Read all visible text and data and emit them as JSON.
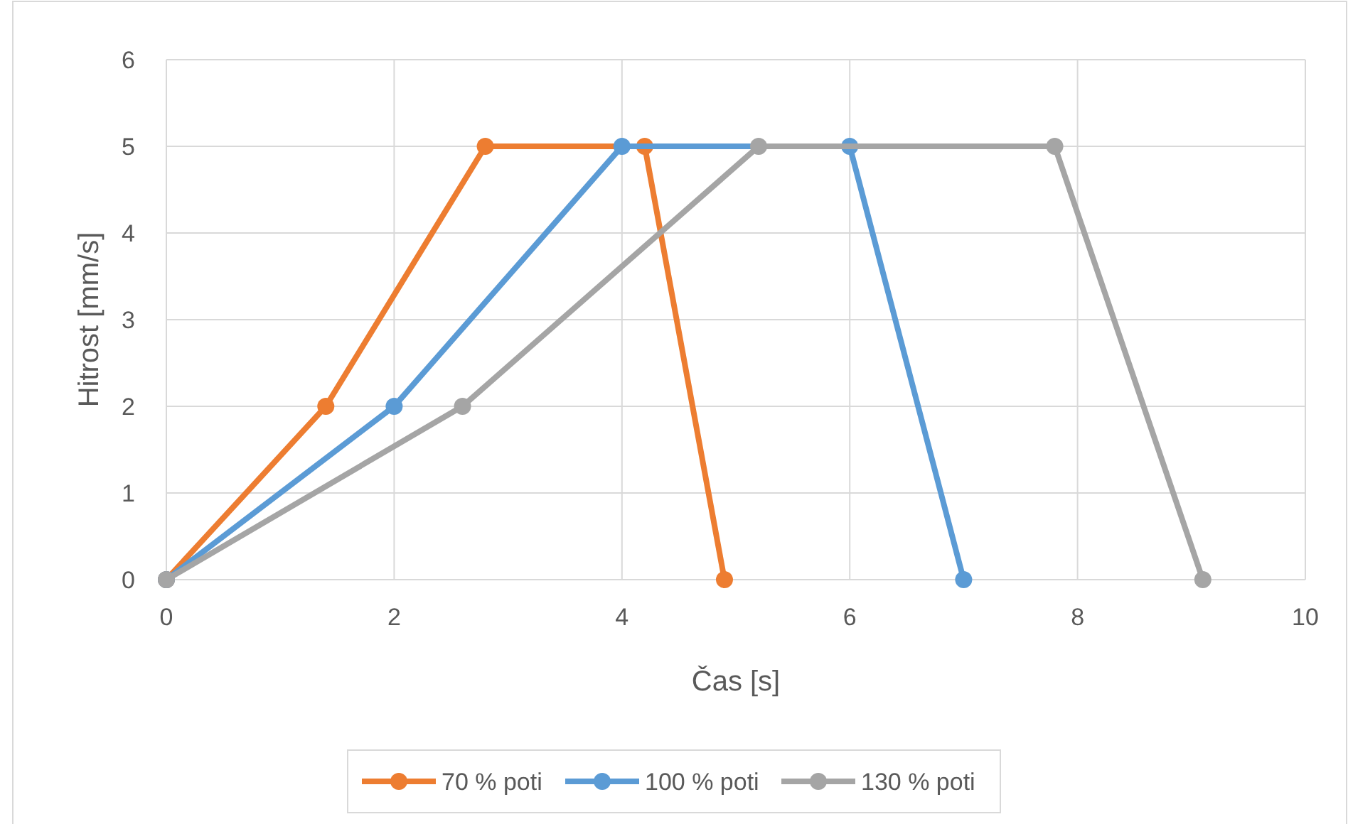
{
  "chart_data": {
    "type": "line",
    "xlabel": "Čas [s]",
    "ylabel": "Hitrost [mm/s]",
    "xlim": [
      0,
      10
    ],
    "xticks": [
      0,
      2,
      4,
      6,
      8,
      10
    ],
    "ylim": [
      0,
      6
    ],
    "yticks": [
      0,
      1,
      2,
      3,
      4,
      5,
      6
    ],
    "grid": true,
    "legend": "bottom",
    "marker": "circle",
    "line_style": "solid",
    "series": [
      {
        "name": "70 % poti",
        "color": "#ed7d31",
        "x": [
          0,
          1.4,
          2.8,
          4.2,
          4.9
        ],
        "values": [
          0,
          2,
          5,
          5,
          0
        ]
      },
      {
        "name": "100 % poti",
        "color": "#5b9bd5",
        "x": [
          0,
          2,
          4,
          6,
          7
        ],
        "values": [
          0,
          2,
          5,
          5,
          0
        ]
      },
      {
        "name": "130 % poti",
        "color": "#a5a5a5",
        "x": [
          0,
          2.6,
          5.2,
          7.8,
          9.1
        ],
        "values": [
          0,
          2,
          5,
          5,
          0
        ]
      }
    ]
  }
}
